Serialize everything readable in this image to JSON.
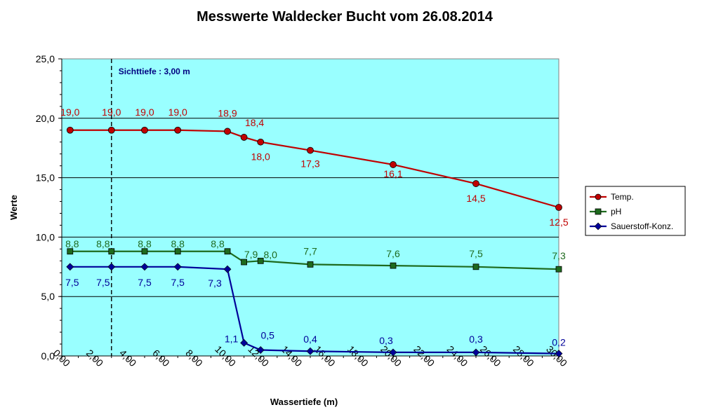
{
  "chart_data": {
    "type": "line",
    "title": "Messwerte Waldecker Bucht vom 26.08.2014",
    "xlabel": "Wassertiefe  (m)",
    "ylabel": "Werte",
    "xlim": [
      0,
      30
    ],
    "ylim": [
      0,
      25
    ],
    "x_ticks": [
      0,
      2,
      4,
      6,
      8,
      10,
      12,
      14,
      16,
      18,
      20,
      22,
      24,
      26,
      28,
      30
    ],
    "x_tick_labels": [
      "0,00",
      "2,00",
      "4,00",
      "6,00",
      "8,00",
      "10,00",
      "12,00",
      "14,00",
      "16,00",
      "18,00",
      "20,00",
      "22,00",
      "24,00",
      "26,00",
      "28,00",
      "30,00"
    ],
    "y_ticks": [
      0,
      5,
      10,
      15,
      20,
      25
    ],
    "y_tick_labels": [
      "0,0",
      "5,0",
      "10,0",
      "15,0",
      "20,0",
      "25,0"
    ],
    "grid": "horizontal",
    "plot_background": "#99ffff",
    "legend_position": "right",
    "annotation": {
      "text": "Sichttiefe : 3,00 m",
      "x": 3,
      "color": "#000080"
    },
    "series": [
      {
        "name": "Temp.",
        "color": "#c00000",
        "marker": "circle",
        "x": [
          0.5,
          3,
          5,
          7,
          10,
          11,
          12,
          15,
          20,
          25,
          30
        ],
        "values": [
          19.0,
          19.0,
          19.0,
          19.0,
          18.9,
          18.4,
          18.0,
          17.3,
          16.1,
          14.5,
          12.5
        ],
        "labels": [
          "19,0",
          "19,0",
          "19,0",
          "19,0",
          "18,9",
          "18,4",
          "18,0",
          "17,3",
          "16,1",
          "14,5",
          "12,5"
        ]
      },
      {
        "name": "pH",
        "color": "#1e6a1e",
        "marker": "square",
        "x": [
          0.5,
          3,
          5,
          7,
          10,
          11,
          12,
          15,
          20,
          25,
          30
        ],
        "values": [
          8.8,
          8.8,
          8.8,
          8.8,
          8.8,
          7.9,
          8.0,
          7.7,
          7.6,
          7.5,
          7.3
        ],
        "labels": [
          "8,8",
          "8,8",
          "8,8",
          "8,8",
          "8,8",
          "7,9",
          "8,0",
          "7,7",
          "7,6",
          "7,5",
          "7,3"
        ]
      },
      {
        "name": "Sauerstoff-Konz.",
        "color": "#000099",
        "marker": "diamond",
        "x": [
          0.5,
          3,
          5,
          7,
          10,
          11,
          12,
          15,
          20,
          25,
          30
        ],
        "values": [
          7.5,
          7.5,
          7.5,
          7.5,
          7.3,
          1.1,
          0.5,
          0.4,
          0.3,
          0.3,
          0.2
        ],
        "labels": [
          "7,5",
          "7,5",
          "7,5",
          "7,5",
          "7,3",
          "1,1",
          "0,5",
          "0,4",
          "0,3",
          "0,3",
          "0,2"
        ]
      }
    ]
  }
}
